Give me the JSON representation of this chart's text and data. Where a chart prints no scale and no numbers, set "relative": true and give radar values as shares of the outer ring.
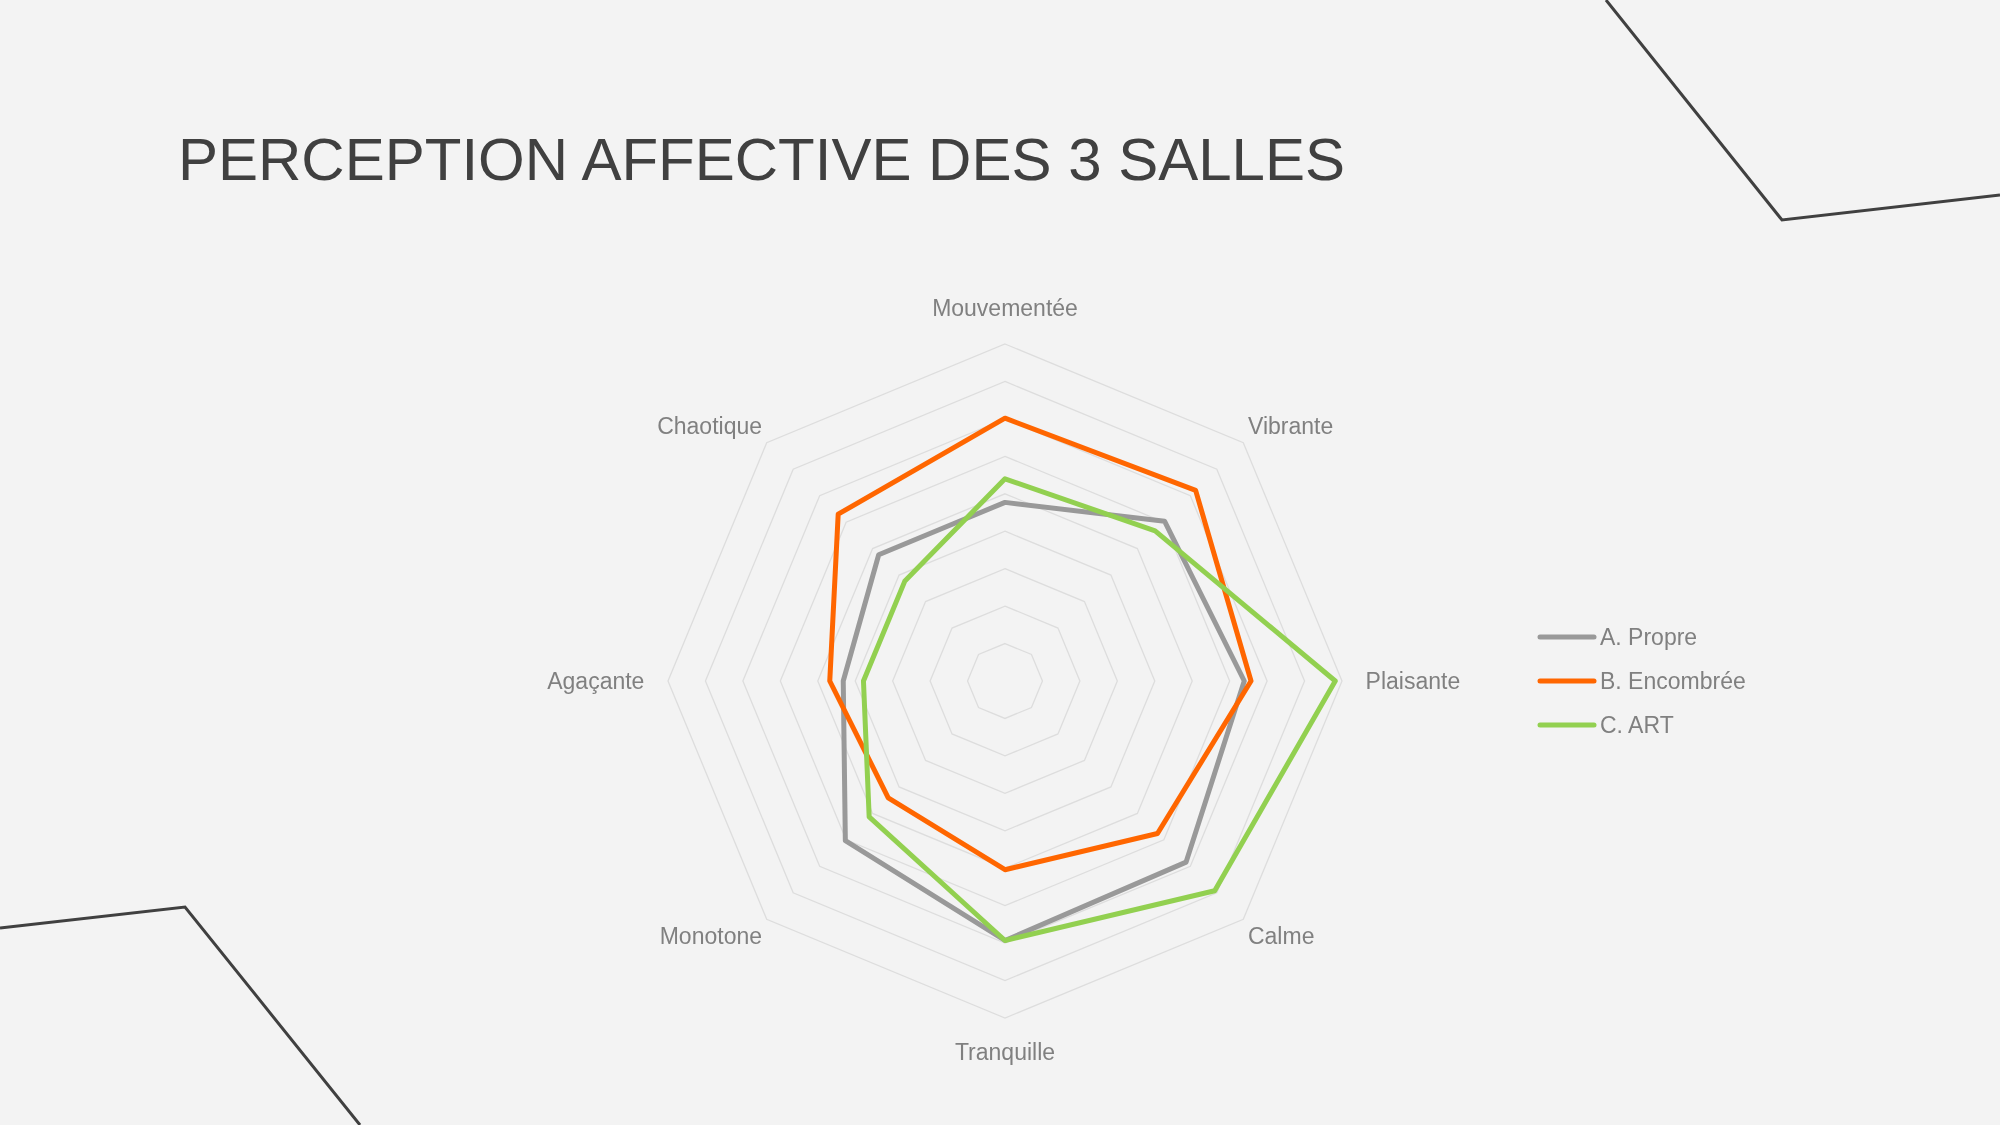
{
  "chart_data": {
    "type": "radar",
    "title": "PERCEPTION AFFECTIVE DES 3 SALLES",
    "relative": true,
    "grid": true,
    "legend": "right",
    "categories": [
      "Mouvementée",
      "Vibrante",
      "Plaisante",
      "Calme",
      "Tranquille",
      "Monotone",
      "Agaçante",
      "Chaotique"
    ],
    "series": [
      {
        "name": "A. Propre",
        "color": "#999999",
        "values": [
          0.53,
          0.67,
          0.71,
          0.76,
          0.77,
          0.67,
          0.48,
          0.53
        ]
      },
      {
        "name": "B. Encombrée",
        "color": "#ff6600",
        "values": [
          0.78,
          0.8,
          0.73,
          0.64,
          0.56,
          0.49,
          0.52,
          0.7
        ]
      },
      {
        "name": "C. ART",
        "color": "#92d050",
        "values": [
          0.6,
          0.63,
          0.98,
          0.88,
          0.77,
          0.57,
          0.42,
          0.42
        ]
      }
    ]
  }
}
